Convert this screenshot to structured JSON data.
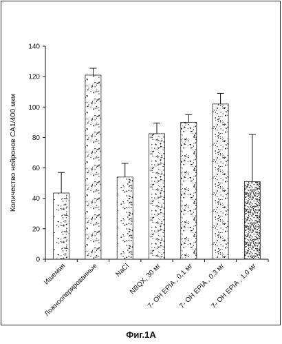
{
  "figure": {
    "caption": "Фиг.1А"
  },
  "chart_data": {
    "type": "bar",
    "title": "",
    "xlabel": "",
    "ylabel": "Количество нейронов СА1/400 мкм",
    "ylim": [
      0,
      140
    ],
    "yticks": [
      0,
      20,
      40,
      60,
      80,
      100,
      120,
      140
    ],
    "grid": false,
    "categories": [
      "Ишемия",
      "Ложнооперированные",
      "NaCl",
      "NBQX, 30 мг",
      "7- OH EPIA , 0,1 мг",
      "7- OH EPIA , 0,3 мг",
      "7- OH EPIA , 1,0 мг"
    ],
    "values": [
      43.5,
      121,
      54,
      82.5,
      90,
      102,
      51
    ],
    "error": [
      13.5,
      4.5,
      9,
      7,
      5,
      7,
      31
    ],
    "bar_fill_density": [
      0.16,
      0.16,
      0.16,
      0.2,
      0.2,
      0.2,
      0.62
    ]
  }
}
